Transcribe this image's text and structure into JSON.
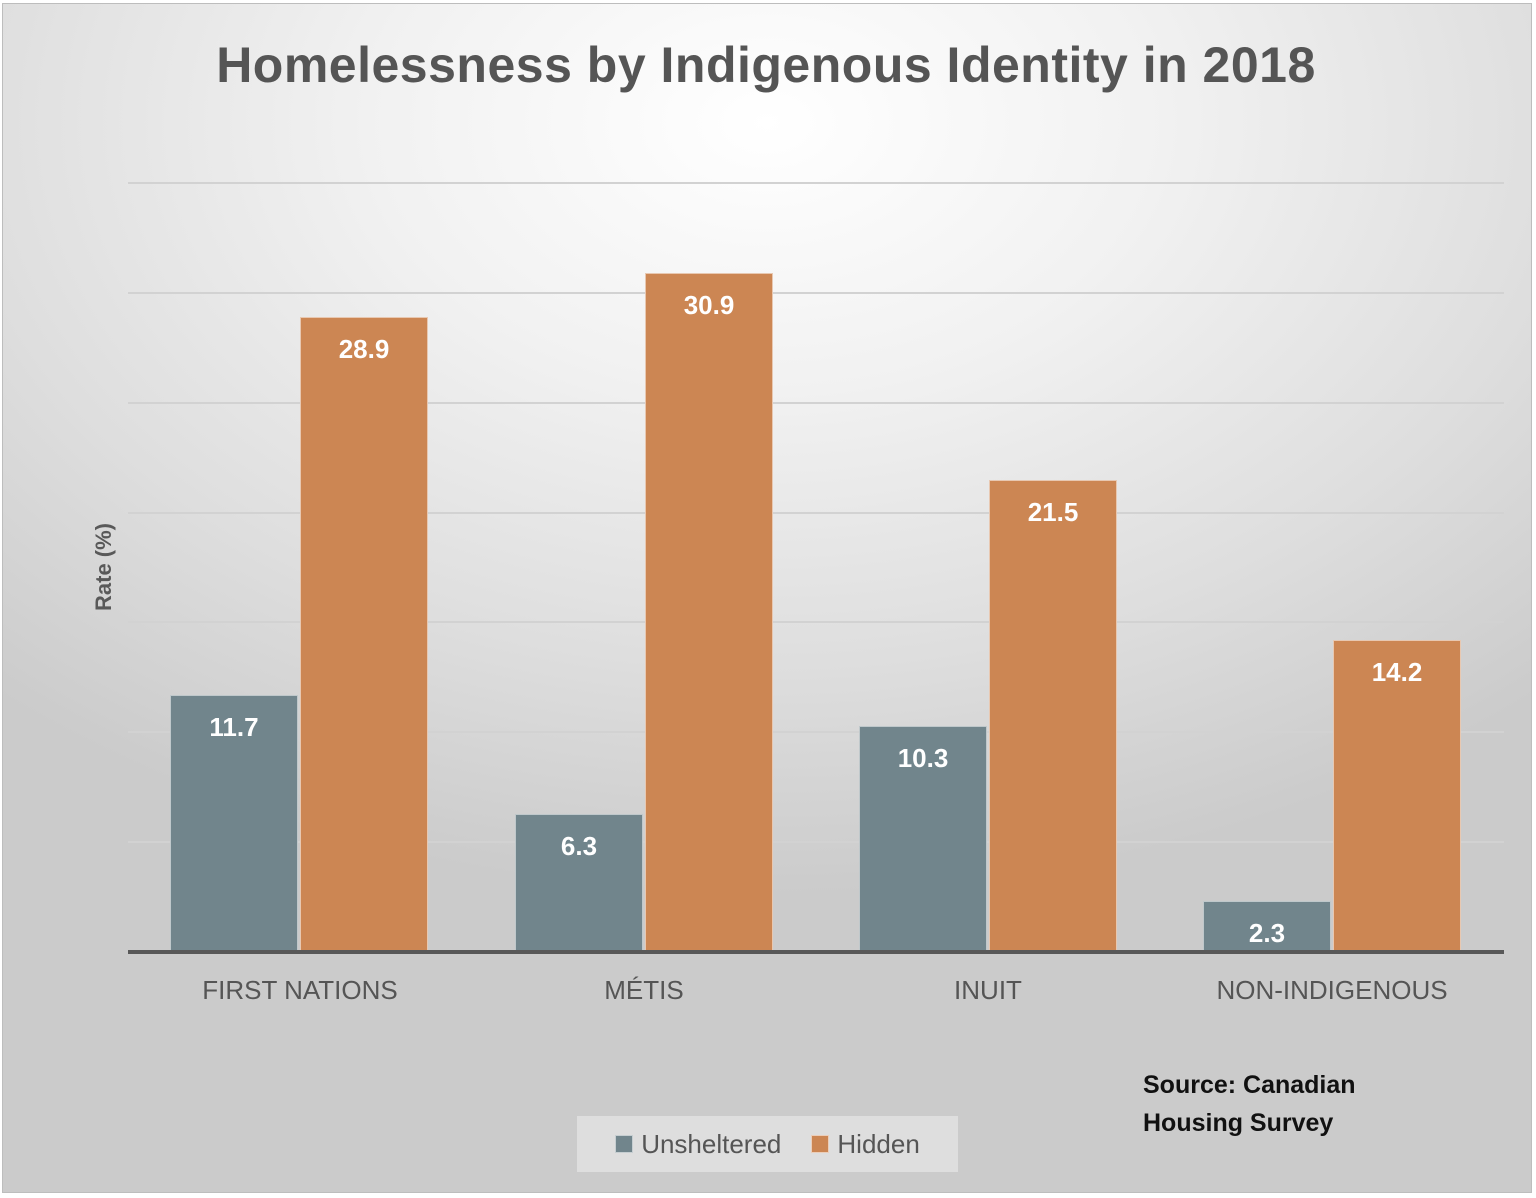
{
  "chart_data": {
    "type": "bar",
    "title": "Homelessness by Indigenous Identity in 2018",
    "xlabel": "",
    "ylabel": "Rate (%)",
    "categories": [
      "FIRST NATIONS",
      "MÉTIS",
      "INUIT",
      "NON-INDIGENOUS"
    ],
    "series": [
      {
        "name": "Unsheltered",
        "color": "#71858c",
        "values": [
          11.7,
          6.3,
          10.3,
          2.3
        ]
      },
      {
        "name": "Hidden",
        "color": "#cc8653",
        "values": [
          28.9,
          30.9,
          21.5,
          14.2
        ]
      }
    ],
    "ylim": [
      0,
      35
    ],
    "yticks": [
      0,
      5,
      10,
      15,
      20,
      25,
      30,
      35
    ],
    "ytick_labels_visible": false,
    "grid": true,
    "legend_position": "bottom",
    "data_labels": true
  },
  "labels": {
    "title": "Homelessness by Indigenous Identity in 2018",
    "ylabel": "Rate (%)",
    "categories": [
      "FIRST NATIONS",
      "MÉTIS",
      "INUIT",
      "NON-INDIGENOUS"
    ],
    "unsheltered": [
      "11.7",
      "6.3",
      "10.3",
      "2.3"
    ],
    "hidden": [
      "28.9",
      "30.9",
      "21.5",
      "14.2"
    ],
    "legend": {
      "unsheltered": "Unsheltered",
      "hidden": "Hidden"
    },
    "source_line1": "Source: Canadian",
    "source_line2": "Housing Survey"
  }
}
